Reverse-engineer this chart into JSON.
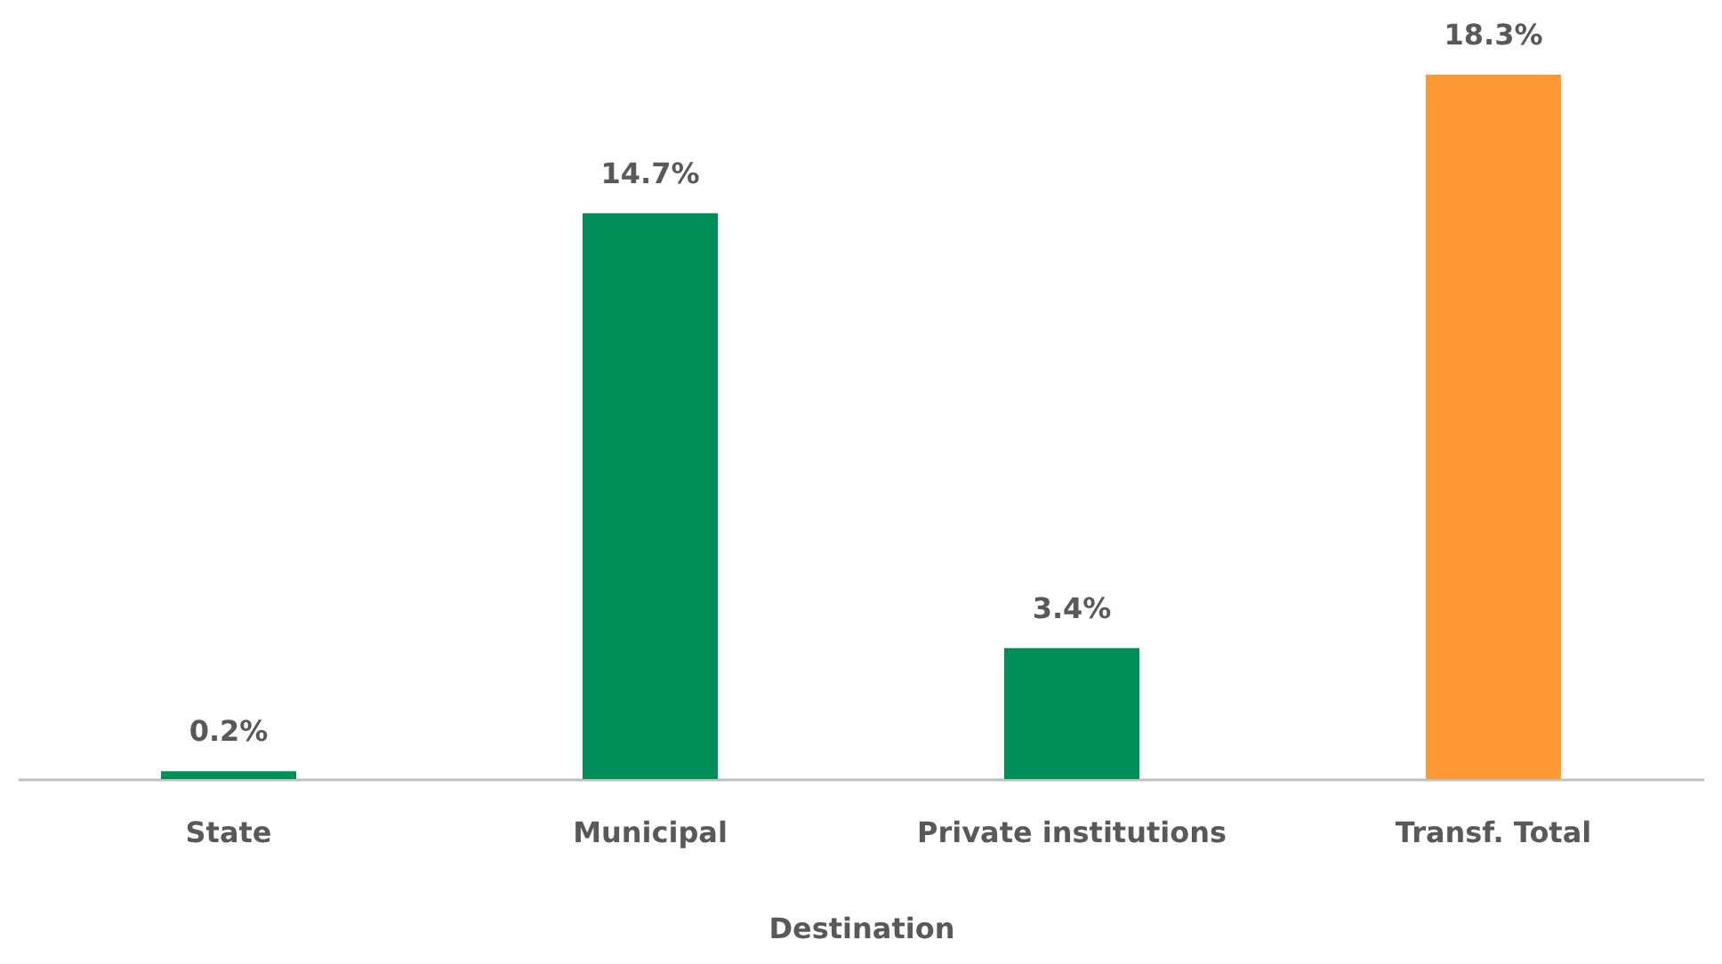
{
  "chart_data": {
    "type": "bar",
    "xlabel": "Destination",
    "categories": [
      "State",
      "Municipal",
      "Private institutions",
      "Transf. Total"
    ],
    "values": [
      0.2,
      14.7,
      3.4,
      18.3
    ],
    "colors": [
      "#008f58",
      "#008f58",
      "#008f58",
      "#ff9933"
    ],
    "value_labels": [
      "0.2%",
      "14.7%",
      "3.4%",
      "18.3%"
    ],
    "grid": false
  }
}
